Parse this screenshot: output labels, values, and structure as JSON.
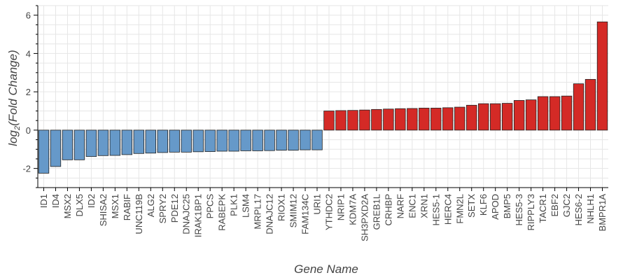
{
  "chart_data": {
    "type": "bar",
    "title": "",
    "xlabel": "Gene Name",
    "ylabel_prefix": "log",
    "ylabel_subscript": "2",
    "ylabel_suffix": "(Fold Change)",
    "ylim": [
      -3,
      6.5
    ],
    "yticks": [
      -2,
      0,
      2,
      4,
      6
    ],
    "grid": true,
    "legend": "none",
    "colors": {
      "negative": "#6699c9",
      "positive": "#d42a26"
    },
    "categories": [
      "ID1",
      "ID4",
      "MSX2",
      "DLX5",
      "ID2",
      "SHISA2",
      "MSX1",
      "RABIF",
      "UNC119B",
      "ALG2",
      "SPRY2",
      "PDE12",
      "DNAJC25",
      "IRAK1BP1",
      "PPCS",
      "RABEPK",
      "PLK1",
      "LSM4",
      "MRPL17",
      "DNAJC12",
      "RIOX1",
      "SMIM12",
      "FAM134C",
      "URI1",
      "YTHDC2",
      "NRIP1",
      "KDM7A",
      "SH3PXD2A",
      "GREB1L",
      "CRHBP",
      "NARF",
      "ENC1",
      "XRN1",
      "HES5-1",
      "HERC4",
      "FMN2L",
      "SETX",
      "KLF6",
      "APOD",
      "BMP5",
      "HES5-3",
      "RIPPLY3",
      "TACR1",
      "EBF2",
      "GJC2",
      "HES6-2",
      "NHLH1",
      "BMPR1A"
    ],
    "values": [
      -2.25,
      -1.9,
      -1.55,
      -1.55,
      -1.38,
      -1.33,
      -1.32,
      -1.28,
      -1.22,
      -1.2,
      -1.17,
      -1.15,
      -1.15,
      -1.13,
      -1.12,
      -1.1,
      -1.1,
      -1.08,
      -1.08,
      -1.07,
      -1.05,
      -1.05,
      -1.03,
      -1.03,
      1.0,
      1.02,
      1.03,
      1.05,
      1.08,
      1.1,
      1.12,
      1.13,
      1.15,
      1.15,
      1.17,
      1.2,
      1.3,
      1.38,
      1.38,
      1.4,
      1.55,
      1.58,
      1.75,
      1.75,
      1.78,
      2.42,
      2.65,
      5.65
    ]
  }
}
